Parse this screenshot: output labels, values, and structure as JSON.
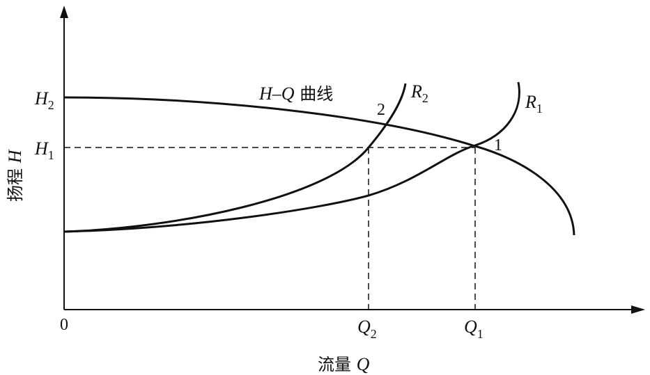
{
  "origin_label": "0",
  "y_axis": {
    "text": "扬程 ",
    "var": "H"
  },
  "x_axis": {
    "text": "流量 ",
    "var": "Q"
  },
  "h2": {
    "main": "H",
    "sub": "2"
  },
  "h1": {
    "main": "H",
    "sub": "1"
  },
  "q2": {
    "main": "Q",
    "sub": "2"
  },
  "q1": {
    "main": "Q",
    "sub": "1"
  },
  "r2": {
    "main": "R",
    "sub": "2"
  },
  "r1": {
    "main": "R",
    "sub": "1"
  },
  "hq_curve": {
    "var": "H–Q",
    "text": " 曲线"
  },
  "point_1": "1",
  "point_2": "2",
  "colors": {
    "line": "#111111",
    "background": "#ffffff"
  }
}
